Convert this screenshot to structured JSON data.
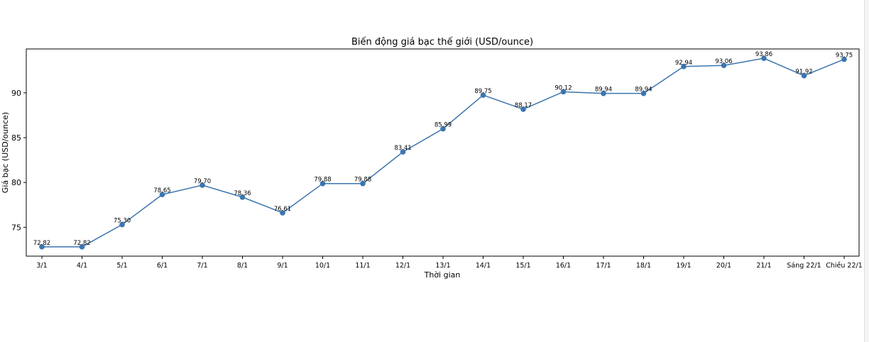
{
  "chart_data": {
    "type": "line",
    "title": "Biến động giá bạc thế giới (USD/ounce)",
    "xlabel": "Thời gian",
    "ylabel": "Giá bạc (USD/ounce)",
    "categories": [
      "3/1",
      "4/1",
      "5/1",
      "6/1",
      "7/1",
      "8/1",
      "9/1",
      "10/1",
      "11/1",
      "12/1",
      "13/1",
      "14/1",
      "15/1",
      "16/1",
      "17/1",
      "18/1",
      "19/1",
      "20/1",
      "21/1",
      "Sáng 22/1",
      "Chiều 22/1"
    ],
    "series": [
      {
        "values": [
          72.82,
          72.82,
          75.3,
          78.65,
          79.7,
          78.36,
          76.61,
          79.88,
          79.88,
          83.41,
          85.99,
          89.75,
          88.17,
          90.12,
          89.94,
          89.94,
          92.94,
          93.06,
          93.86,
          91.92,
          93.75
        ],
        "labels": [
          "72.82",
          "72.82",
          "75.30",
          "78.65",
          "79.70",
          "78.36",
          "76.61",
          "79.88",
          "79.88",
          "83.41",
          "85.99",
          "89.75",
          "88.17",
          "90.12",
          "89.94",
          "89.94",
          "92.94",
          "93.06",
          "93.86",
          "91.92",
          "93.75"
        ],
        "color": "#3b75af"
      }
    ],
    "ylim": [
      71.78,
      94.9
    ],
    "yticks": [
      "75",
      "80",
      "85",
      "90"
    ],
    "grid": false,
    "legend": "none"
  }
}
